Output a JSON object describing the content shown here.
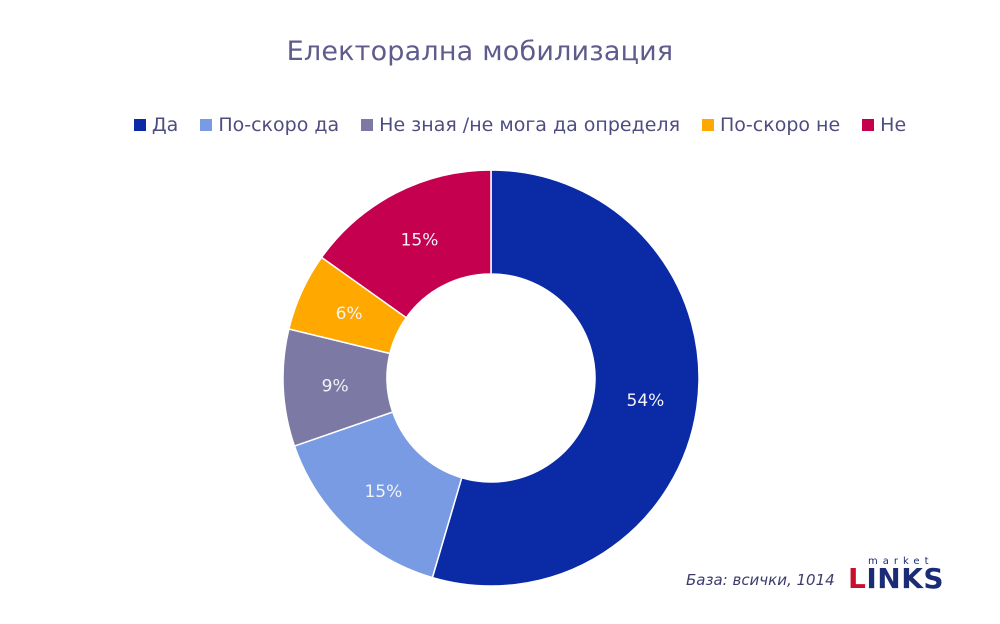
{
  "chart_data": {
    "type": "pie",
    "title": "Електорална мобилизация",
    "categories": [
      "Да",
      "По-скоро да",
      "Не зная /не мога да определя",
      "По-скоро не",
      "Не"
    ],
    "values": [
      54,
      15,
      9,
      6,
      15
    ],
    "value_labels": [
      "54%",
      "15%",
      "9%",
      "6%",
      "15%"
    ],
    "colors": [
      "#0a2aa6",
      "#789be3",
      "#7c7aa5",
      "#ffa800",
      "#c4004f"
    ],
    "donut": true,
    "legend_position": "top"
  },
  "footer": {
    "base_note": "База: всички, 1014",
    "logo_small": "market",
    "logo_first_letter": "L",
    "logo_rest": "INKS"
  }
}
